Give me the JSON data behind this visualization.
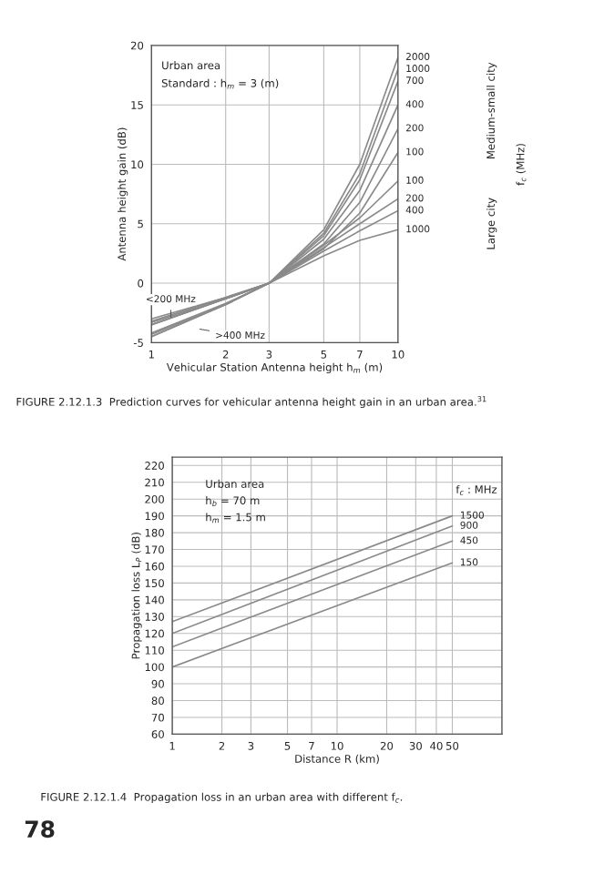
{
  "chart_data": [
    {
      "type": "line",
      "xlabel": "Vehicular Station Antenna height h$_{m}$ (m)",
      "ylabel": "Antenna height gain (dB)",
      "log": "x",
      "grid": true,
      "x": [
        1,
        2,
        3,
        5,
        7,
        10
      ],
      "xlim": [
        1,
        10
      ],
      "xticks": [
        1,
        2,
        3,
        5,
        7,
        10
      ],
      "ylim": [
        -5,
        20
      ],
      "yticks": [
        -5,
        0,
        5,
        10,
        15,
        20
      ],
      "series": [
        {
          "name": "2000",
          "color": "#8a8a8a",
          "values": [
            -3.5,
            -1.3,
            0,
            4.5,
            10,
            19
          ]
        },
        {
          "name": "1000",
          "color": "#8a8a8a",
          "values": [
            -3.5,
            -1.3,
            0,
            4.2,
            9.2,
            18
          ]
        },
        {
          "name": "700",
          "color": "#8a8a8a",
          "values": [
            -3.5,
            -1.3,
            0,
            4,
            8.7,
            17
          ]
        },
        {
          "name": "400",
          "color": "#8a8a8a",
          "values": [
            -3.3,
            -1.3,
            0,
            3.7,
            7.8,
            15
          ]
        },
        {
          "name": "200",
          "color": "#8a8a8a",
          "values": [
            -3.2,
            -1.2,
            0,
            3.3,
            6.8,
            13
          ]
        },
        {
          "name": "100",
          "color": "#8a8a8a",
          "values": [
            -3,
            -1.2,
            0,
            2.9,
            5.9,
            11
          ]
        },
        {
          "name": "100",
          "color": "#8a8a8a",
          "values": [
            -4.5,
            -1.8,
            0,
            3.2,
            5.5,
            8.6
          ]
        },
        {
          "name": "200",
          "color": "#8a8a8a",
          "values": [
            -4.5,
            -1.8,
            0,
            3,
            5,
            7.1
          ]
        },
        {
          "name": "400",
          "color": "#8a8a8a",
          "values": [
            -4.3,
            -1.8,
            0,
            2.7,
            4.4,
            6.1
          ]
        },
        {
          "name": "1000",
          "color": "#8a8a8a",
          "values": [
            -4.2,
            -1.7,
            0,
            2.3,
            3.6,
            4.5
          ]
        }
      ],
      "annotations": [
        "Urban area",
        "Standard : h$_{m}$ = 3 (m)",
        {
          "text": "<200 MHz",
          "x": 1.2,
          "y": -3.3
        },
        {
          "text": ">400 MHz",
          "x": 1.5,
          "y": -3.8
        },
        "Medium-small city",
        "Large city",
        "f$_{c}$ (MHz)",
        "FIGURE 2.12.1.3  Prediction curves for vehicular antenna height gain in an urban area.$^{31}$"
      ]
    },
    {
      "type": "line",
      "xlabel": "Distance R (km)",
      "ylabel": "Propagation loss L$_{P}$ (dB)",
      "log": "x",
      "grid": true,
      "x": [
        1,
        50
      ],
      "xlim": [
        1,
        100
      ],
      "xticks": [
        1,
        2,
        3,
        5,
        7,
        10,
        20,
        30,
        40,
        50
      ],
      "ylim": [
        60,
        225
      ],
      "yticks": [
        60,
        70,
        80,
        90,
        100,
        110,
        120,
        130,
        140,
        150,
        160,
        170,
        180,
        190,
        200,
        210,
        220
      ],
      "series": [
        {
          "name": "1500",
          "color": "#8a8a8a",
          "values": [
            127,
            190
          ]
        },
        {
          "name": "900",
          "color": "#8a8a8a",
          "values": [
            120,
            184
          ]
        },
        {
          "name": "450",
          "color": "#8a8a8a",
          "values": [
            112,
            175
          ]
        },
        {
          "name": "150",
          "color": "#8a8a8a",
          "values": [
            100,
            162
          ]
        }
      ],
      "annotations": [
        "Urban area",
        "h$_{b}$ = 70 m",
        "h$_{m}$ = 1.5 m",
        "f$_{c}$ : MHz",
        "FIGURE 2.12.1.4  Propagation loss in an urban area with different f$_{c}$.",
        "78"
      ]
    }
  ]
}
